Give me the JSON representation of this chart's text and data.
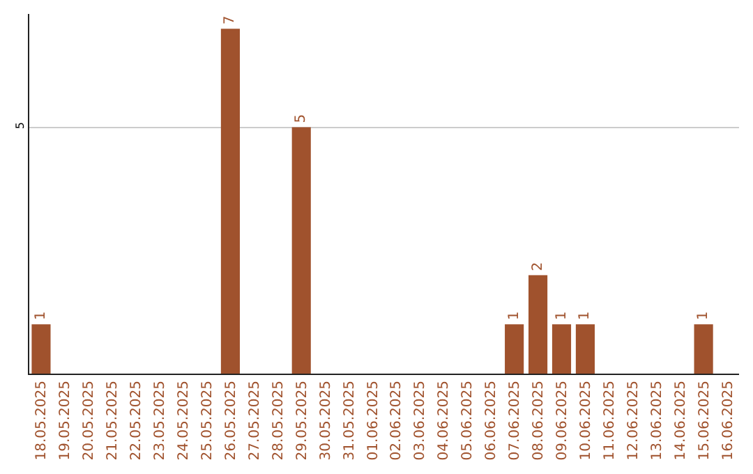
{
  "chart_data": {
    "type": "bar",
    "categories": [
      "18.05.2025",
      "19.05.2025",
      "20.05.2025",
      "21.05.2025",
      "22.05.2025",
      "23.05.2025",
      "24.05.2025",
      "25.05.2025",
      "26.05.2025",
      "27.05.2025",
      "28.05.2025",
      "29.05.2025",
      "30.05.2025",
      "31.05.2025",
      "01.06.2025",
      "02.06.2025",
      "03.06.2025",
      "04.06.2025",
      "05.06.2025",
      "06.06.2025",
      "07.06.2025",
      "08.06.2025",
      "09.06.2025",
      "10.06.2025",
      "11.06.2025",
      "12.06.2025",
      "13.06.2025",
      "14.06.2025",
      "15.06.2025",
      "16.06.2025"
    ],
    "values": [
      1,
      0,
      0,
      0,
      0,
      0,
      0,
      0,
      7,
      0,
      0,
      5,
      0,
      0,
      0,
      0,
      0,
      0,
      0,
      0,
      1,
      2,
      1,
      1,
      0,
      0,
      0,
      0,
      1,
      0
    ],
    "value_labels": [
      "1",
      null,
      null,
      null,
      null,
      null,
      null,
      null,
      "7",
      null,
      null,
      "5",
      null,
      null,
      null,
      null,
      null,
      null,
      null,
      null,
      "1",
      "2",
      "1",
      "1",
      null,
      null,
      null,
      null,
      "1",
      null
    ],
    "color": "#a0522d",
    "ylim": [
      0,
      7.3
    ],
    "yticks": [
      5
    ],
    "grid": "y"
  }
}
